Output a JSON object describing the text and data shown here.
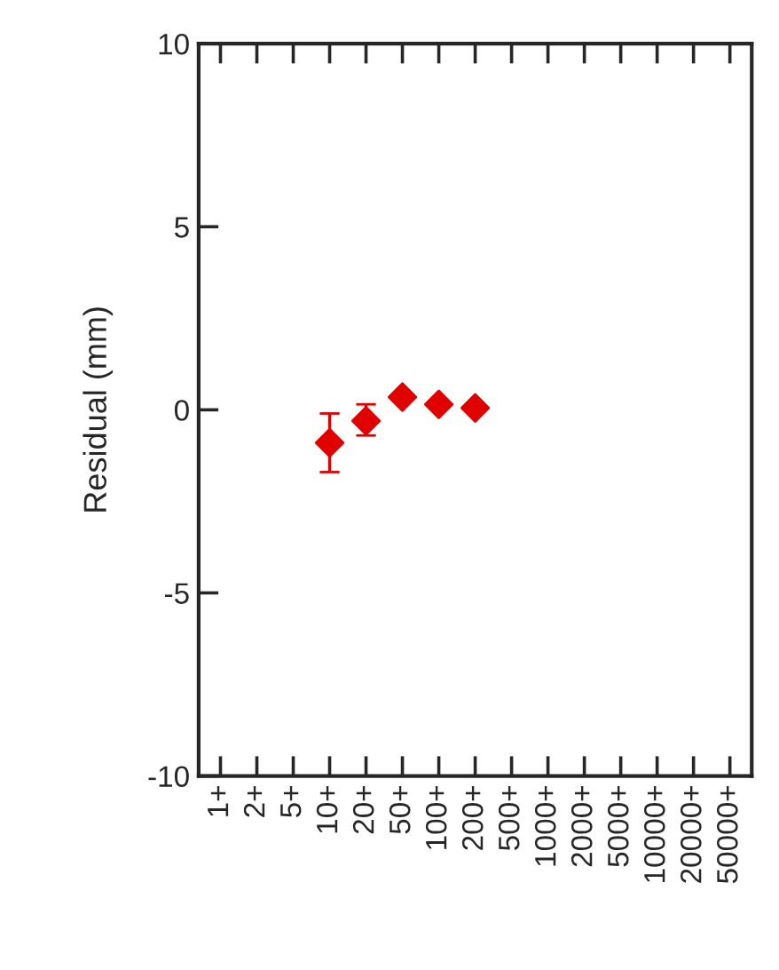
{
  "chart_data": {
    "type": "scatter",
    "ylabel": "Residual (mm)",
    "categories": [
      "1+",
      "2+",
      "5+",
      "10+",
      "20+",
      "50+",
      "100+",
      "200+",
      "500+",
      "1000+",
      "2000+",
      "5000+",
      "10000+",
      "20000+",
      "50000+"
    ],
    "series": [
      {
        "color": "#e00000",
        "values": [
          null,
          null,
          null,
          -0.9,
          -0.3,
          0.35,
          0.15,
          0.05,
          null,
          null,
          null,
          null,
          null,
          null,
          null
        ],
        "errors": [
          null,
          null,
          null,
          [
            -1.7,
            -0.1
          ],
          [
            -0.7,
            0.15
          ],
          null,
          null,
          null,
          null,
          null,
          null,
          null,
          null,
          null,
          null
        ]
      }
    ],
    "ylim": [
      -10,
      10
    ],
    "yticks": [
      -10,
      -5,
      0,
      5,
      10
    ],
    "marker": "diamond",
    "grid": false,
    "legend": false
  }
}
